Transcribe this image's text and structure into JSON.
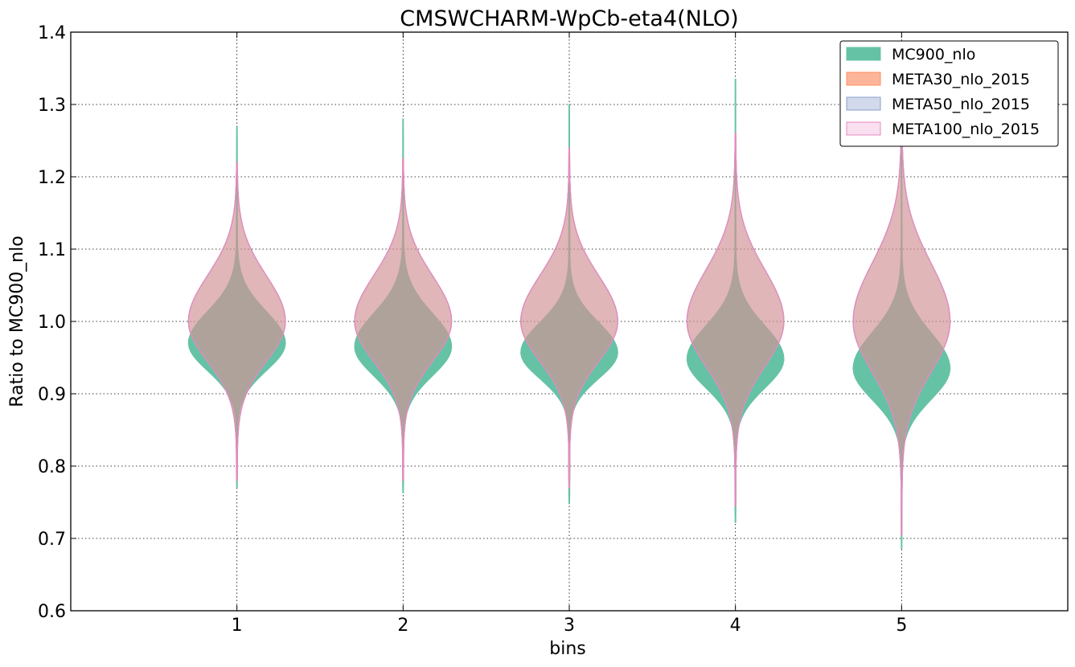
{
  "chart_data": {
    "type": "violin",
    "title": "CMSWCHARM-WpCb-eta4(NLO)",
    "xlabel": "bins",
    "ylabel": "Ratio to MC900_nlo",
    "categories": [
      "1",
      "2",
      "3",
      "4",
      "5"
    ],
    "x_ticks": [
      1,
      2,
      3,
      4,
      5
    ],
    "xlim": [
      0,
      6
    ],
    "ylim": [
      0.6,
      1.4
    ],
    "y_ticks": [
      0.6,
      0.7,
      0.8,
      0.9,
      1.0,
      1.1,
      1.2,
      1.3,
      1.4
    ],
    "y_tick_labels": [
      "0.6",
      "0.7",
      "0.8",
      "0.9",
      "1.0",
      "1.1",
      "1.2",
      "1.3",
      "1.4"
    ],
    "grid": true,
    "legend_position": "top-right",
    "series": [
      {
        "name": "MC900_nlo",
        "fill": "#66c2a5",
        "edge": "#66c2a5",
        "fill_opacity": 1.0,
        "violins": [
          {
            "center": 0.97,
            "min": 0.77,
            "max": 1.27,
            "spread": 0.038
          },
          {
            "center": 0.965,
            "min": 0.763,
            "max": 1.28,
            "spread": 0.04
          },
          {
            "center": 0.957,
            "min": 0.748,
            "max": 1.3,
            "spread": 0.036
          },
          {
            "center": 0.948,
            "min": 0.722,
            "max": 1.335,
            "spread": 0.04
          },
          {
            "center": 0.935,
            "min": 0.686,
            "max": 1.29,
            "spread": 0.043
          }
        ]
      },
      {
        "name": "META30_nlo_2015",
        "fill": "#fc8d62",
        "edge": "#fc8d62",
        "fill_opacity": 0.5,
        "violins": [
          {
            "center": 1.0,
            "min": 0.78,
            "max": 1.22,
            "spread": 0.055
          },
          {
            "center": 1.0,
            "min": 0.78,
            "max": 1.225,
            "spread": 0.055
          },
          {
            "center": 1.0,
            "min": 0.77,
            "max": 1.24,
            "spread": 0.055
          },
          {
            "center": 1.0,
            "min": 0.745,
            "max": 1.26,
            "spread": 0.062
          },
          {
            "center": 1.0,
            "min": 0.705,
            "max": 1.28,
            "spread": 0.07
          }
        ]
      },
      {
        "name": "META50_nlo_2015",
        "fill": "#8da0cb",
        "edge": "#8da0cb",
        "fill_opacity": 0.25,
        "violins": [
          {
            "center": 1.0,
            "min": 0.78,
            "max": 1.22,
            "spread": 0.055
          },
          {
            "center": 1.0,
            "min": 0.78,
            "max": 1.225,
            "spread": 0.055
          },
          {
            "center": 1.0,
            "min": 0.77,
            "max": 1.24,
            "spread": 0.055
          },
          {
            "center": 1.0,
            "min": 0.745,
            "max": 1.26,
            "spread": 0.062
          },
          {
            "center": 1.0,
            "min": 0.705,
            "max": 1.28,
            "spread": 0.07
          }
        ]
      },
      {
        "name": "META100_nlo_2015",
        "fill": "#e78ac3",
        "edge": "#e78ac3",
        "fill_opacity": 0.12,
        "violins": [
          {
            "center": 1.0,
            "min": 0.78,
            "max": 1.22,
            "spread": 0.055
          },
          {
            "center": 1.0,
            "min": 0.78,
            "max": 1.225,
            "spread": 0.055
          },
          {
            "center": 1.0,
            "min": 0.77,
            "max": 1.24,
            "spread": 0.055
          },
          {
            "center": 1.0,
            "min": 0.745,
            "max": 1.26,
            "spread": 0.062
          },
          {
            "center": 1.0,
            "min": 0.705,
            "max": 1.28,
            "spread": 0.07
          }
        ]
      }
    ]
  }
}
